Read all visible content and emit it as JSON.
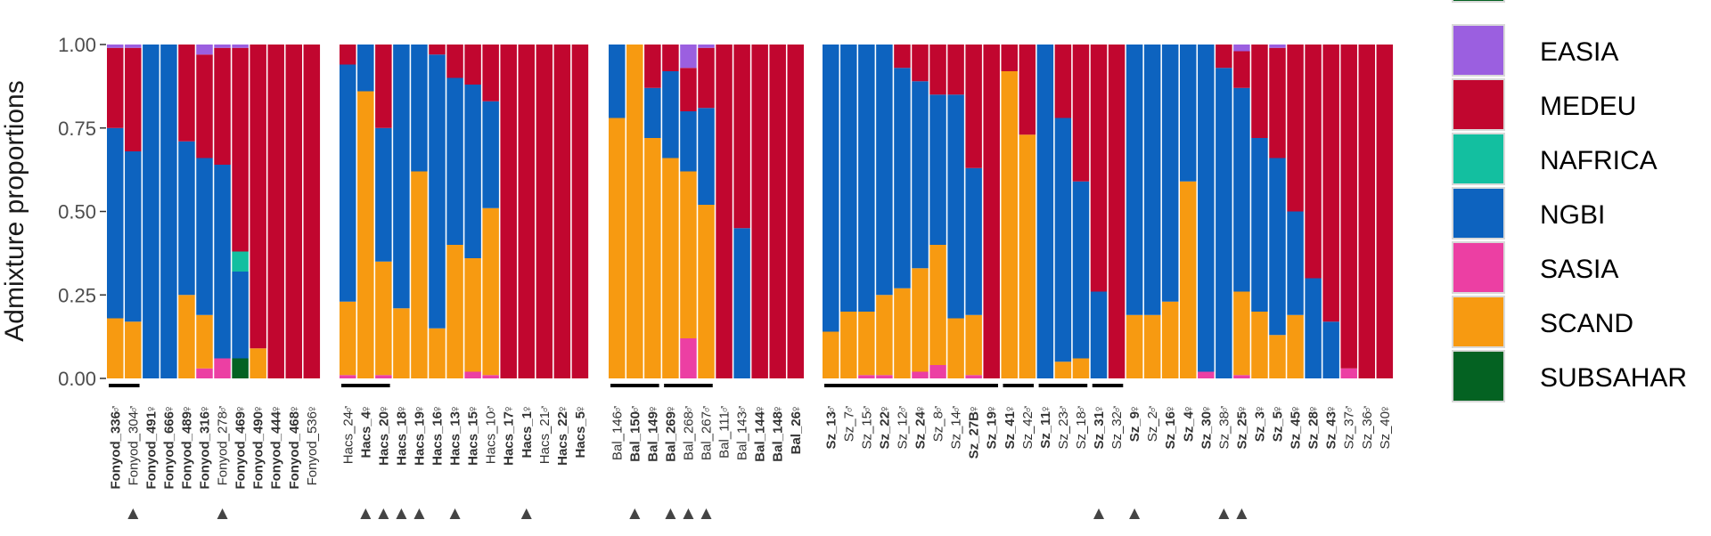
{
  "chart_data": {
    "type": "bar",
    "stacked": true,
    "ylabel": "Admixture proportions",
    "ylim": [
      0,
      1
    ],
    "y_ticks": [
      "1.00",
      "0.75",
      "0.50",
      "0.25",
      "0.00"
    ],
    "y_tick_values": [
      1.0,
      0.75,
      0.5,
      0.25,
      0.0
    ],
    "component_order": [
      "SUBSAHAR",
      "SASIA",
      "SCAND",
      "NGBI",
      "NAFRICA",
      "MEDEU",
      "EASIA"
    ],
    "legend": {
      "placement": "right",
      "items": [
        {
          "name": "EASIA",
          "color": "#9b5fe0"
        },
        {
          "name": "MEDEU",
          "color": "#c1062f"
        },
        {
          "name": "NAFRICA",
          "color": "#13bfa0"
        },
        {
          "name": "NGBI",
          "color": "#0d63bf"
        },
        {
          "name": "SASIA",
          "color": "#ec3fa3"
        },
        {
          "name": "SCAND",
          "color": "#f79a11"
        },
        {
          "name": "SUBSAHAR",
          "color": "#046222"
        }
      ]
    },
    "groups": [
      {
        "samples": [
          {
            "name": "Fonyod_336",
            "bold": true,
            "sex": "♂",
            "marker": false,
            "v": {
              "SCAND": 0.18,
              "NGBI": 0.57,
              "MEDEU": 0.24,
              "EASIA": 0.01
            }
          },
          {
            "name": "Fonyod_304",
            "bold": false,
            "sex": "♂",
            "marker": true,
            "v": {
              "SCAND": 0.17,
              "NGBI": 0.51,
              "MEDEU": 0.31,
              "EASIA": 0.01
            }
          },
          {
            "name": "Fonyod_491",
            "bold": true,
            "sex": "♀",
            "marker": false,
            "v": {
              "NGBI": 1.0
            }
          },
          {
            "name": "Fonyod_666",
            "bold": true,
            "sex": "♀",
            "marker": false,
            "v": {
              "NGBI": 1.0
            }
          },
          {
            "name": "Fonyod_489",
            "bold": true,
            "sex": "♀",
            "marker": false,
            "v": {
              "SCAND": 0.25,
              "NGBI": 0.46,
              "MEDEU": 0.29
            }
          },
          {
            "name": "Fonyod_316",
            "bold": true,
            "sex": "♀",
            "marker": false,
            "v": {
              "SCAND": 0.16,
              "SASIA": 0.03,
              "NGBI": 0.47,
              "MEDEU": 0.31,
              "EASIA": 0.03
            }
          },
          {
            "name": "Fonyod_278",
            "bold": false,
            "sex": "♂",
            "marker": true,
            "v": {
              "SASIA": 0.06,
              "NGBI": 0.58,
              "MEDEU": 0.35,
              "EASIA": 0.01
            }
          },
          {
            "name": "Fonyod_469",
            "bold": true,
            "sex": "♀",
            "marker": false,
            "v": {
              "SUBSAHAR": 0.06,
              "NGBI": 0.26,
              "NAFRICA": 0.06,
              "MEDEU": 0.61,
              "EASIA": 0.01
            }
          },
          {
            "name": "Fonyod_490",
            "bold": true,
            "sex": "♀",
            "marker": false,
            "v": {
              "SCAND": 0.09,
              "MEDEU": 0.91
            }
          },
          {
            "name": "Fonyod_444",
            "bold": true,
            "sex": "♀",
            "marker": false,
            "v": {
              "MEDEU": 1.0
            }
          },
          {
            "name": "Fonyod_468",
            "bold": true,
            "sex": "♀",
            "marker": false,
            "v": {
              "MEDEU": 1.0
            }
          },
          {
            "name": "Fonyod_536",
            "bold": false,
            "sex": "♀",
            "marker": false,
            "v": {
              "MEDEU": 1.0
            }
          }
        ],
        "underlines": [
          [
            0,
            1
          ]
        ]
      },
      {
        "samples": [
          {
            "name": "Hacs_24",
            "bold": false,
            "sex": "♂",
            "marker": false,
            "v": {
              "SCAND": 0.22,
              "SASIA": 0.01,
              "NGBI": 0.71,
              "MEDEU": 0.06
            }
          },
          {
            "name": "Hacs_4",
            "bold": true,
            "sex": "♀",
            "marker": true,
            "v": {
              "SCAND": 0.86,
              "NGBI": 0.14
            }
          },
          {
            "name": "Hacs_20",
            "bold": true,
            "sex": "♀",
            "marker": true,
            "v": {
              "SCAND": 0.34,
              "SASIA": 0.01,
              "NGBI": 0.4,
              "MEDEU": 0.25
            }
          },
          {
            "name": "Hacs_18",
            "bold": true,
            "sex": "♀",
            "marker": true,
            "v": {
              "SCAND": 0.21,
              "NGBI": 0.79
            }
          },
          {
            "name": "Hacs_19",
            "bold": true,
            "sex": "♀",
            "marker": true,
            "v": {
              "SCAND": 0.62,
              "NGBI": 0.38
            }
          },
          {
            "name": "Hacs_16",
            "bold": true,
            "sex": "♀",
            "marker": false,
            "v": {
              "SCAND": 0.15,
              "NGBI": 0.82,
              "MEDEU": 0.03
            }
          },
          {
            "name": "Hacs_13",
            "bold": true,
            "sex": "♀",
            "marker": true,
            "v": {
              "SCAND": 0.4,
              "NGBI": 0.5,
              "MEDEU": 0.1
            }
          },
          {
            "name": "Hacs_15",
            "bold": true,
            "sex": "♀",
            "marker": false,
            "v": {
              "SCAND": 0.34,
              "SASIA": 0.02,
              "NGBI": 0.52,
              "MEDEU": 0.12
            }
          },
          {
            "name": "Hacs_10",
            "bold": false,
            "sex": "♂",
            "marker": false,
            "v": {
              "SCAND": 0.5,
              "SASIA": 0.01,
              "NGBI": 0.32,
              "MEDEU": 0.17
            }
          },
          {
            "name": "Hacs_17",
            "bold": true,
            "sex": "♀",
            "marker": false,
            "v": {
              "MEDEU": 1.0
            }
          },
          {
            "name": "Hacs_1",
            "bold": true,
            "sex": "♀",
            "marker": true,
            "v": {
              "MEDEU": 1.0
            }
          },
          {
            "name": "Hacs_21",
            "bold": false,
            "sex": "♂",
            "marker": false,
            "v": {
              "MEDEU": 1.0
            }
          },
          {
            "name": "Hacs_22",
            "bold": true,
            "sex": "♀",
            "marker": false,
            "v": {
              "MEDEU": 1.0
            }
          },
          {
            "name": "Hacs_5",
            "bold": true,
            "sex": "♀",
            "marker": false,
            "v": {
              "MEDEU": 1.0
            }
          }
        ],
        "underlines": [
          [
            0,
            2
          ]
        ]
      },
      {
        "samples": [
          {
            "name": "Bal_146",
            "bold": false,
            "sex": "♂",
            "marker": false,
            "v": {
              "SCAND": 0.78,
              "NGBI": 0.22
            }
          },
          {
            "name": "Bal_150",
            "bold": true,
            "sex": "♂",
            "marker": true,
            "v": {
              "SCAND": 1.0
            }
          },
          {
            "name": "Bal_149",
            "bold": true,
            "sex": "♀",
            "marker": false,
            "v": {
              "SCAND": 0.72,
              "NGBI": 0.15,
              "MEDEU": 0.13
            }
          },
          {
            "name": "Bal_269",
            "bold": true,
            "sex": "♀",
            "marker": true,
            "v": {
              "SCAND": 0.66,
              "NGBI": 0.26,
              "MEDEU": 0.08
            }
          },
          {
            "name": "Bal_268",
            "bold": false,
            "sex": "♂",
            "marker": true,
            "v": {
              "SCAND": 0.5,
              "SASIA": 0.12,
              "NGBI": 0.18,
              "MEDEU": 0.13,
              "EASIA": 0.07
            }
          },
          {
            "name": "Bal_267",
            "bold": false,
            "sex": "♂",
            "marker": true,
            "v": {
              "SCAND": 0.52,
              "NGBI": 0.29,
              "MEDEU": 0.18,
              "EASIA": 0.01
            }
          },
          {
            "name": "Bal_111",
            "bold": false,
            "sex": "♂",
            "marker": false,
            "v": {
              "MEDEU": 1.0
            }
          },
          {
            "name": "Bal_143",
            "bold": false,
            "sex": "♂",
            "marker": false,
            "v": {
              "NGBI": 0.45,
              "MEDEU": 0.55
            }
          },
          {
            "name": "Bal_144",
            "bold": true,
            "sex": "♀",
            "marker": false,
            "v": {
              "MEDEU": 1.0
            }
          },
          {
            "name": "Bal_148",
            "bold": true,
            "sex": "♀",
            "marker": false,
            "v": {
              "MEDEU": 1.0
            }
          },
          {
            "name": "Bal_26",
            "bold": true,
            "sex": "♀",
            "marker": false,
            "v": {
              "MEDEU": 1.0
            }
          }
        ],
        "underlines": [
          [
            0,
            2
          ],
          [
            3,
            5
          ]
        ]
      },
      {
        "samples": [
          {
            "name": "Sz_13",
            "bold": true,
            "sex": "♂",
            "marker": false,
            "v": {
              "SCAND": 0.14,
              "NGBI": 0.86
            }
          },
          {
            "name": "Sz_7",
            "bold": false,
            "sex": "♂",
            "marker": false,
            "v": {
              "SCAND": 0.2,
              "NGBI": 0.8
            }
          },
          {
            "name": "Sz_15",
            "bold": false,
            "sex": "♂",
            "marker": false,
            "v": {
              "SCAND": 0.19,
              "SASIA": 0.01,
              "NGBI": 0.8
            }
          },
          {
            "name": "Sz_22",
            "bold": true,
            "sex": "♀",
            "marker": false,
            "v": {
              "SCAND": 0.24,
              "SASIA": 0.01,
              "NGBI": 0.75
            }
          },
          {
            "name": "Sz_12",
            "bold": false,
            "sex": "♂",
            "marker": false,
            "v": {
              "SCAND": 0.27,
              "NGBI": 0.66,
              "MEDEU": 0.07
            }
          },
          {
            "name": "Sz_24",
            "bold": true,
            "sex": "♀",
            "marker": false,
            "v": {
              "SCAND": 0.31,
              "SASIA": 0.02,
              "NGBI": 0.56,
              "MEDEU": 0.11
            }
          },
          {
            "name": "Sz_8",
            "bold": false,
            "sex": "♂",
            "marker": false,
            "v": {
              "SCAND": 0.36,
              "SASIA": 0.04,
              "NGBI": 0.45,
              "MEDEU": 0.15
            }
          },
          {
            "name": "Sz_14",
            "bold": false,
            "sex": "♂",
            "marker": false,
            "v": {
              "SCAND": 0.18,
              "NGBI": 0.67,
              "MEDEU": 0.15
            }
          },
          {
            "name": "Sz_27B",
            "bold": true,
            "sex": "♀",
            "marker": false,
            "v": {
              "SCAND": 0.18,
              "SASIA": 0.01,
              "NGBI": 0.44,
              "MEDEU": 0.37
            }
          },
          {
            "name": "Sz_19",
            "bold": true,
            "sex": "♀",
            "marker": false,
            "v": {
              "MEDEU": 1.0
            }
          },
          {
            "name": "Sz_41",
            "bold": true,
            "sex": "♀",
            "marker": false,
            "v": {
              "SCAND": 0.92,
              "MEDEU": 0.08
            }
          },
          {
            "name": "Sz_42",
            "bold": false,
            "sex": "♂",
            "marker": false,
            "v": {
              "SCAND": 0.73,
              "MEDEU": 0.27
            }
          },
          {
            "name": "Sz_11",
            "bold": true,
            "sex": "♀",
            "marker": false,
            "v": {
              "NGBI": 1.0
            }
          },
          {
            "name": "Sz_23",
            "bold": false,
            "sex": "♂",
            "marker": false,
            "v": {
              "SCAND": 0.05,
              "NGBI": 0.73,
              "MEDEU": 0.22
            }
          },
          {
            "name": "Sz_18",
            "bold": false,
            "sex": "♂",
            "marker": false,
            "v": {
              "SCAND": 0.06,
              "NGBI": 0.53,
              "MEDEU": 0.41
            }
          },
          {
            "name": "Sz_31",
            "bold": true,
            "sex": "♀",
            "marker": true,
            "v": {
              "NGBI": 0.26,
              "MEDEU": 0.74
            }
          },
          {
            "name": "Sz_32",
            "bold": false,
            "sex": "♂",
            "marker": false,
            "v": {
              "MEDEU": 1.0
            }
          },
          {
            "name": "Sz_9",
            "bold": true,
            "sex": "♀",
            "marker": true,
            "v": {
              "SCAND": 0.19,
              "NGBI": 0.81
            }
          },
          {
            "name": "Sz_2",
            "bold": false,
            "sex": "♂",
            "marker": false,
            "v": {
              "SCAND": 0.19,
              "NGBI": 0.81
            }
          },
          {
            "name": "Sz_16",
            "bold": true,
            "sex": "♀",
            "marker": false,
            "v": {
              "SCAND": 0.23,
              "NGBI": 0.77
            }
          },
          {
            "name": "Sz_4",
            "bold": true,
            "sex": "♀",
            "marker": false,
            "v": {
              "SCAND": 0.59,
              "NGBI": 0.41
            }
          },
          {
            "name": "Sz_30",
            "bold": true,
            "sex": "♀",
            "marker": false,
            "v": {
              "SASIA": 0.02,
              "NGBI": 0.98
            }
          },
          {
            "name": "Sz_38",
            "bold": false,
            "sex": "♂",
            "marker": true,
            "v": {
              "NGBI": 0.93,
              "MEDEU": 0.07
            }
          },
          {
            "name": "Sz_25",
            "bold": true,
            "sex": "♀",
            "marker": true,
            "v": {
              "SCAND": 0.25,
              "SASIA": 0.01,
              "NGBI": 0.61,
              "MEDEU": 0.11,
              "EASIA": 0.02
            }
          },
          {
            "name": "Sz_3",
            "bold": true,
            "sex": "♀",
            "marker": false,
            "v": {
              "SCAND": 0.2,
              "NGBI": 0.52,
              "MEDEU": 0.28
            }
          },
          {
            "name": "Sz_5",
            "bold": true,
            "sex": "♀",
            "marker": false,
            "v": {
              "SCAND": 0.13,
              "NGBI": 0.53,
              "MEDEU": 0.33,
              "EASIA": 0.01
            }
          },
          {
            "name": "Sz_45",
            "bold": true,
            "sex": "♀",
            "marker": false,
            "v": {
              "SCAND": 0.19,
              "NGBI": 0.31,
              "MEDEU": 0.5
            }
          },
          {
            "name": "Sz_28",
            "bold": true,
            "sex": "♀",
            "marker": false,
            "v": {
              "NGBI": 0.3,
              "MEDEU": 0.7
            }
          },
          {
            "name": "Sz_43",
            "bold": true,
            "sex": "♀",
            "marker": false,
            "v": {
              "NGBI": 0.17,
              "MEDEU": 0.83
            }
          },
          {
            "name": "Sz_37",
            "bold": false,
            "sex": "♂",
            "marker": false,
            "v": {
              "SASIA": 0.03,
              "MEDEU": 0.97
            }
          },
          {
            "name": "Sz_36",
            "bold": false,
            "sex": "♂",
            "marker": false,
            "v": {
              "MEDEU": 1.0
            }
          },
          {
            "name": "Sz_40",
            "bold": false,
            "sex": "♀",
            "marker": false,
            "v": {
              "MEDEU": 1.0
            }
          }
        ],
        "underlines": [
          [
            0,
            9
          ],
          [
            10,
            11
          ],
          [
            12,
            14
          ],
          [
            15,
            16
          ]
        ]
      }
    ]
  }
}
